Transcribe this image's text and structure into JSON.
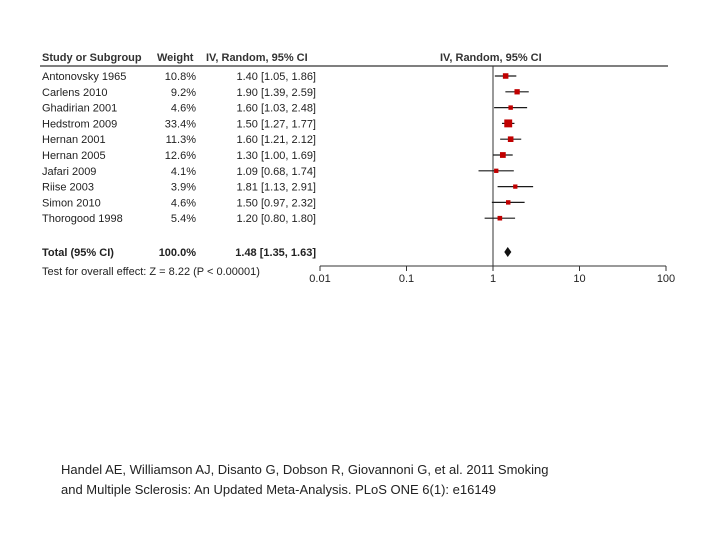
{
  "chart_data": {
    "type": "forest",
    "headers": {
      "study": "Study or Subgroup",
      "weight": "Weight",
      "ci": "IV, Random, 95% CI",
      "plot": "IV, Random, 95% CI"
    },
    "studies": [
      {
        "name": "Antonovsky 1965",
        "weight": "10.8%",
        "ci_text": "1.40 [1.05, 1.86]",
        "or": 1.4,
        "lo": 1.05,
        "hi": 1.86,
        "w": 10.8
      },
      {
        "name": "Carlens 2010",
        "weight": "9.2%",
        "ci_text": "1.90 [1.39, 2.59]",
        "or": 1.9,
        "lo": 1.39,
        "hi": 2.59,
        "w": 9.2
      },
      {
        "name": "Ghadirian 2001",
        "weight": "4.6%",
        "ci_text": "1.60 [1.03, 2.48]",
        "or": 1.6,
        "lo": 1.03,
        "hi": 2.48,
        "w": 4.6
      },
      {
        "name": "Hedstrom 2009",
        "weight": "33.4%",
        "ci_text": "1.50 [1.27, 1.77]",
        "or": 1.5,
        "lo": 1.27,
        "hi": 1.77,
        "w": 33.4
      },
      {
        "name": "Hernan 2001",
        "weight": "11.3%",
        "ci_text": "1.60 [1.21, 2.12]",
        "or": 1.6,
        "lo": 1.21,
        "hi": 2.12,
        "w": 11.3
      },
      {
        "name": "Hernan 2005",
        "weight": "12.6%",
        "ci_text": "1.30 [1.00, 1.69]",
        "or": 1.3,
        "lo": 1.0,
        "hi": 1.69,
        "w": 12.6
      },
      {
        "name": "Jafari 2009",
        "weight": "4.1%",
        "ci_text": "1.09 [0.68, 1.74]",
        "or": 1.09,
        "lo": 0.68,
        "hi": 1.74,
        "w": 4.1
      },
      {
        "name": "Riise 2003",
        "weight": "3.9%",
        "ci_text": "1.81 [1.13, 2.91]",
        "or": 1.81,
        "lo": 1.13,
        "hi": 2.91,
        "w": 3.9
      },
      {
        "name": "Simon 2010",
        "weight": "4.6%",
        "ci_text": "1.50 [0.97, 2.32]",
        "or": 1.5,
        "lo": 0.97,
        "hi": 2.32,
        "w": 4.6
      },
      {
        "name": "Thorogood 1998",
        "weight": "5.4%",
        "ci_text": "1.20 [0.80, 1.80]",
        "or": 1.2,
        "lo": 0.8,
        "hi": 1.8,
        "w": 5.4
      }
    ],
    "total": {
      "name": "Total (95% CI)",
      "weight": "100.0%",
      "ci_text": "1.48 [1.35, 1.63]",
      "or": 1.48,
      "lo": 1.35,
      "hi": 1.63
    },
    "overall_test": "Test for overall effect: Z = 8.22 (P < 0.00001)",
    "axis": {
      "scale": "log",
      "range": [
        0.01,
        100
      ],
      "ticks": [
        0.01,
        0.1,
        1,
        10,
        100
      ],
      "tick_labels": [
        "0.01",
        "0.1",
        "1",
        "10",
        "100"
      ],
      "reference": 1
    },
    "colors": {
      "marker": "#c00000",
      "line": "#1a1a1a",
      "diamond": "#111111"
    }
  },
  "citation": {
    "line1": "Handel AE, Williamson AJ, Disanto G, Dobson R, Giovannoni G, et al. 2011 Smoking",
    "line2": "and Multiple Sclerosis: An Updated Meta-Analysis. PLoS ONE 6(1): e16149"
  }
}
